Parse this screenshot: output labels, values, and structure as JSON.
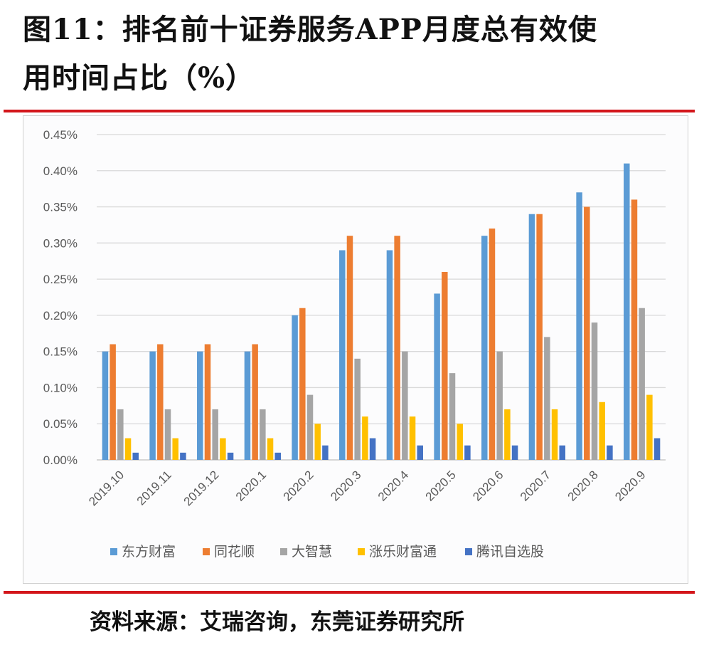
{
  "header": {
    "title_line1": "图11：排名前十证券服务APP月度总有效使",
    "title_line2": "用时间占比（%）"
  },
  "footer": {
    "source": "资料来源：艾瑞咨询，东莞证券研究所"
  },
  "chart_data": {
    "type": "bar",
    "title": "排名前十证券服务APP月度总有效使用时间占比（%）",
    "xlabel": "",
    "ylabel": "",
    "ylim": [
      0,
      0.45
    ],
    "y_ticks": [
      "0.00%",
      "0.05%",
      "0.10%",
      "0.15%",
      "0.20%",
      "0.25%",
      "0.30%",
      "0.35%",
      "0.40%",
      "0.45%"
    ],
    "grid": true,
    "legend_position": "bottom",
    "categories": [
      "2019.10",
      "2019.11",
      "2019.12",
      "2020.1",
      "2020.2",
      "2020.3",
      "2020.4",
      "2020.5",
      "2020.6",
      "2020.7",
      "2020.8",
      "2020.9"
    ],
    "series": [
      {
        "name": "东方财富",
        "color": "#5b9bd5",
        "values": [
          0.15,
          0.15,
          0.15,
          0.15,
          0.2,
          0.29,
          0.29,
          0.23,
          0.31,
          0.34,
          0.37,
          0.41
        ]
      },
      {
        "name": "同花顺",
        "color": "#ed7d31",
        "values": [
          0.16,
          0.16,
          0.16,
          0.16,
          0.21,
          0.31,
          0.31,
          0.26,
          0.32,
          0.34,
          0.35,
          0.36
        ]
      },
      {
        "name": "大智慧",
        "color": "#a5a5a5",
        "values": [
          0.07,
          0.07,
          0.07,
          0.07,
          0.09,
          0.14,
          0.15,
          0.12,
          0.15,
          0.17,
          0.19,
          0.21
        ]
      },
      {
        "name": "涨乐财富通",
        "color": "#ffc000",
        "values": [
          0.03,
          0.03,
          0.03,
          0.03,
          0.05,
          0.06,
          0.06,
          0.05,
          0.07,
          0.07,
          0.08,
          0.09
        ]
      },
      {
        "name": "腾讯自选股",
        "color": "#4472c4",
        "values": [
          0.01,
          0.01,
          0.01,
          0.01,
          0.02,
          0.03,
          0.02,
          0.02,
          0.02,
          0.02,
          0.02,
          0.03
        ]
      }
    ]
  }
}
